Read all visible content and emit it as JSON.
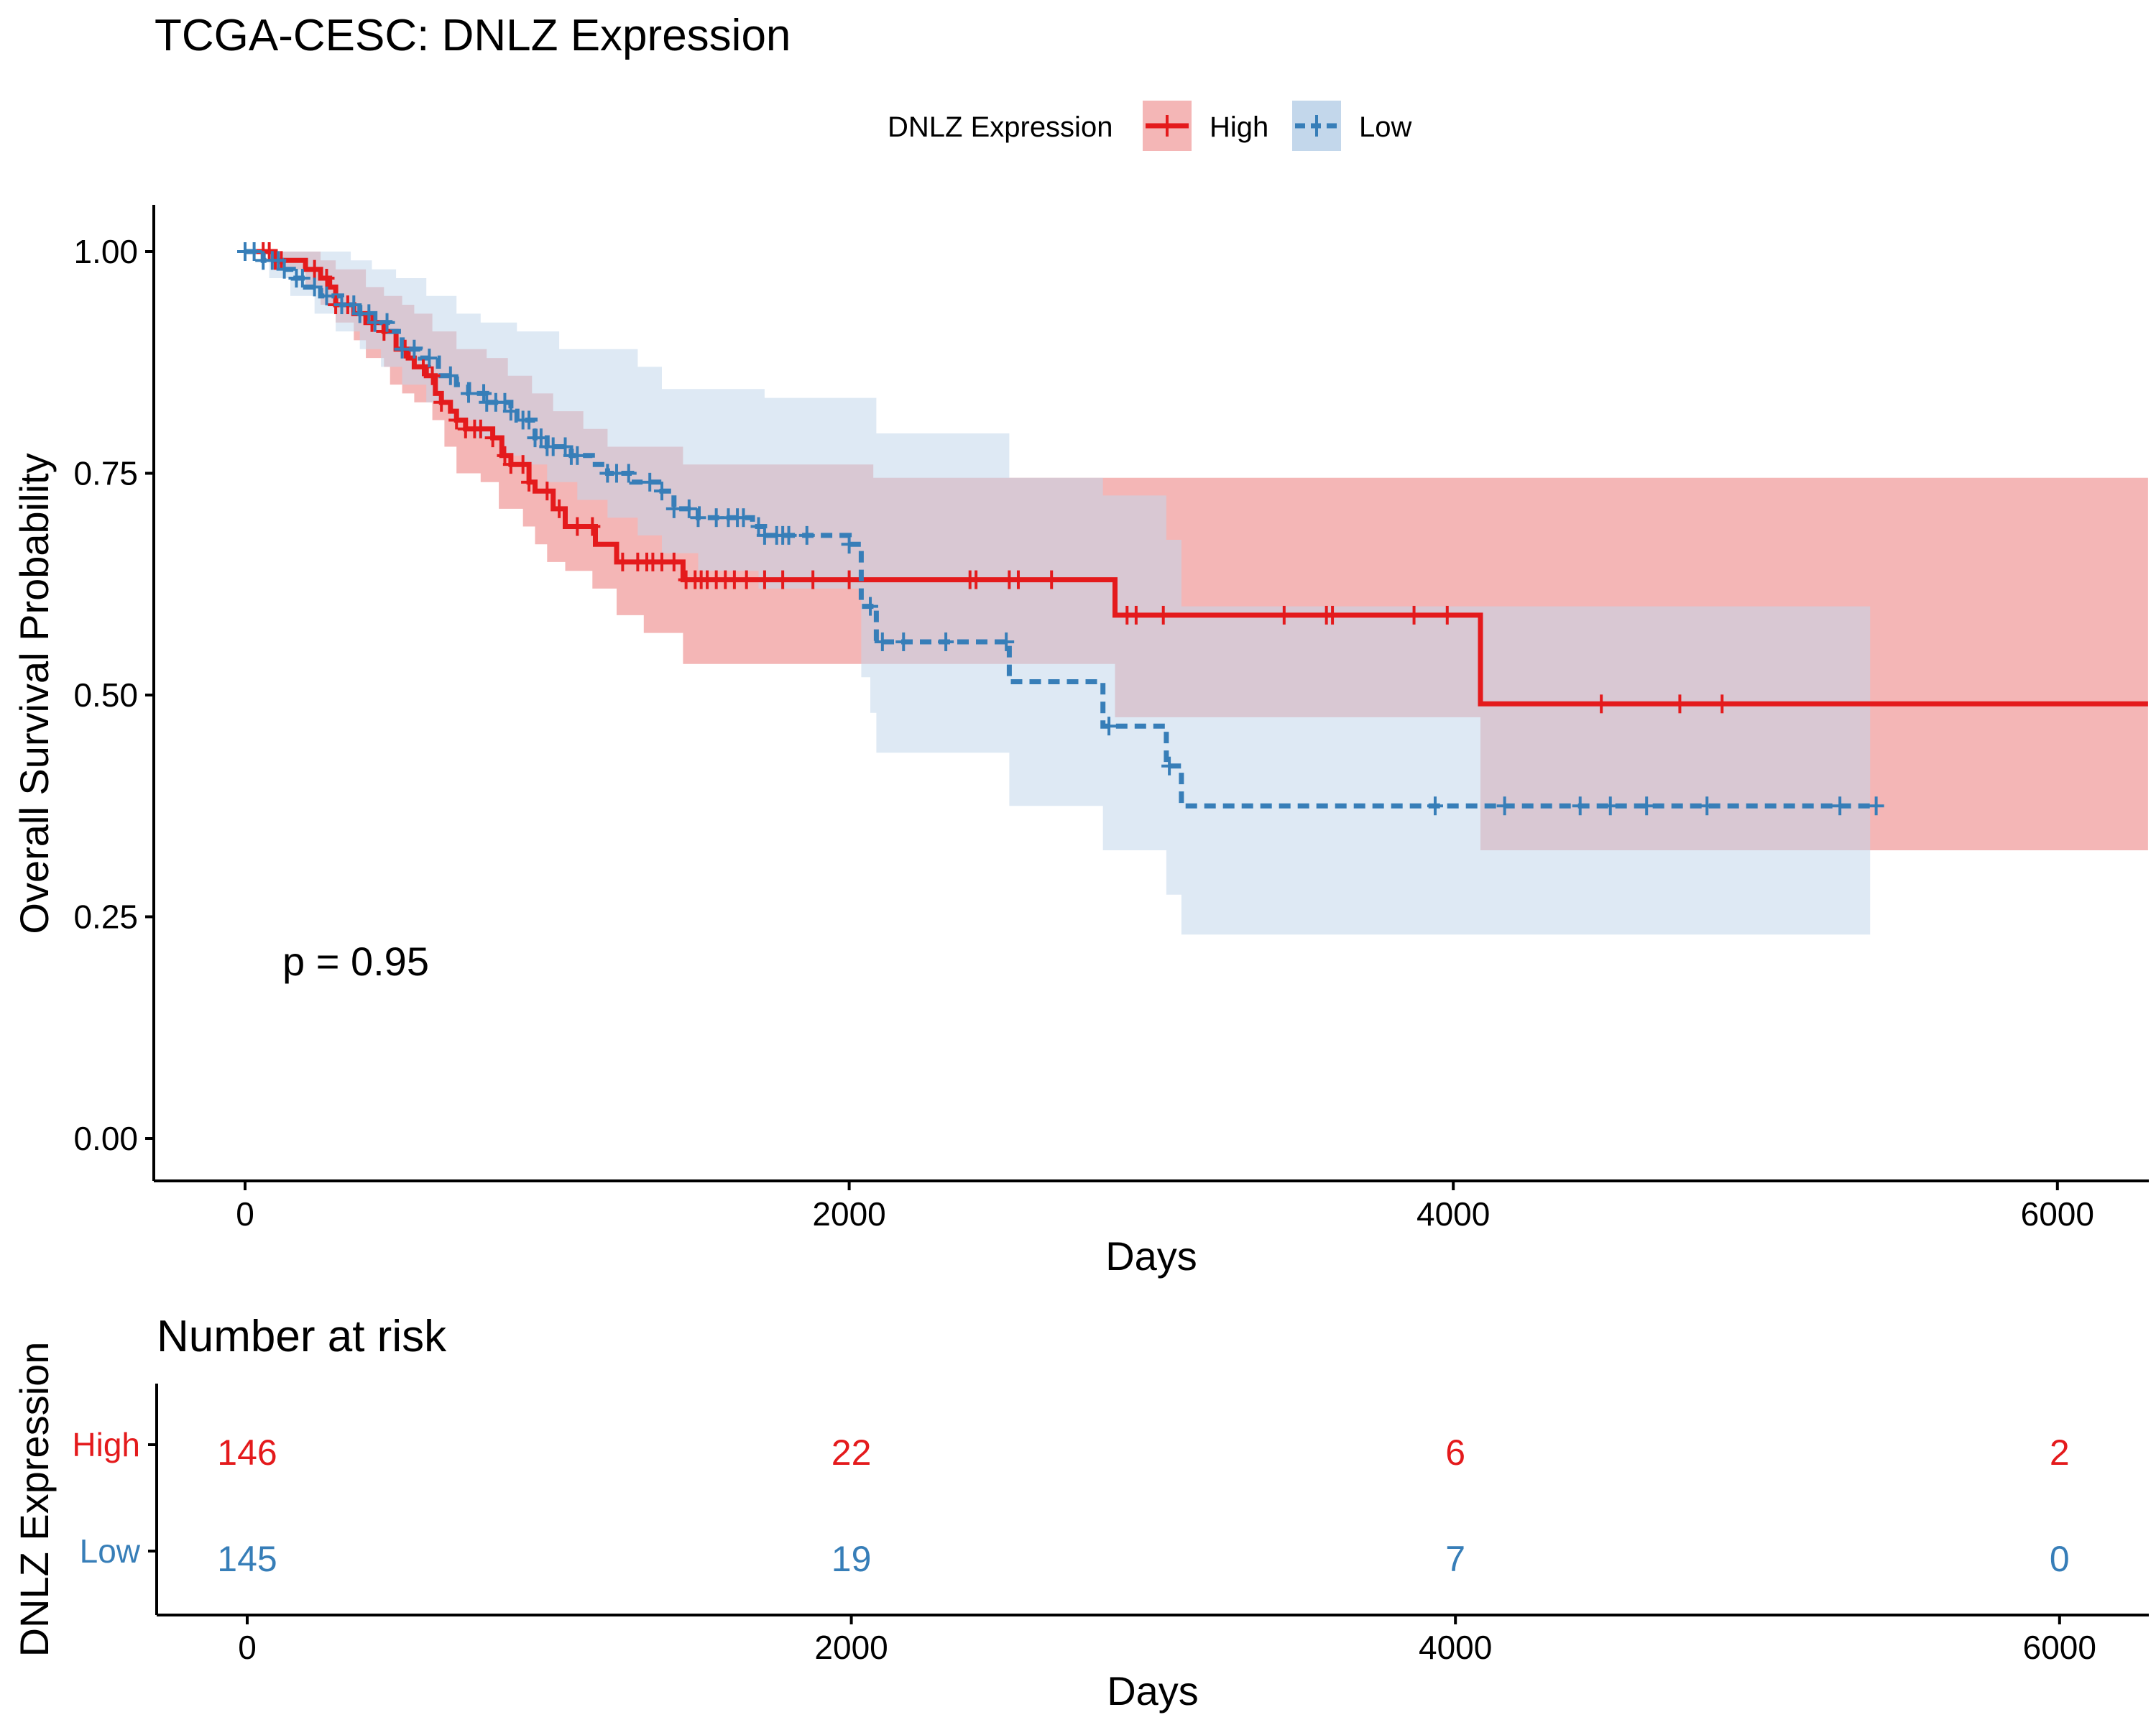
{
  "chart_data": {
    "type": "line",
    "subtype": "kaplan-meier",
    "title": "TCGA-CESC: DNLZ Expression",
    "xlabel": "Days",
    "ylabel": "Overall Survival Probability",
    "xlim": [
      -300,
      6300
    ],
    "ylim": [
      -0.05,
      1.05
    ],
    "x_ticks": [
      "0",
      "2000",
      "4000",
      "6000"
    ],
    "y_ticks": [
      "0.00",
      "0.25",
      "0.50",
      "0.75",
      "1.00"
    ],
    "legend": {
      "title": "DNLZ Expression",
      "position": "top",
      "entries": [
        "High",
        "Low"
      ]
    },
    "pvalue_text": "p = 0.95",
    "colors": {
      "High": "#e41a1c",
      "Low": "#377eb8",
      "High_ci": "#f4b6b6",
      "Low_ci": "#c3d7eb"
    },
    "series": [
      {
        "name": "High",
        "line": "solid",
        "steps": [
          [
            0,
            1.0
          ],
          [
            100,
            0.99
          ],
          [
            200,
            0.98
          ],
          [
            250,
            0.97
          ],
          [
            280,
            0.96
          ],
          [
            300,
            0.94
          ],
          [
            360,
            0.93
          ],
          [
            400,
            0.92
          ],
          [
            460,
            0.91
          ],
          [
            500,
            0.89
          ],
          [
            540,
            0.88
          ],
          [
            560,
            0.87
          ],
          [
            600,
            0.86
          ],
          [
            630,
            0.84
          ],
          [
            650,
            0.83
          ],
          [
            680,
            0.82
          ],
          [
            700,
            0.81
          ],
          [
            730,
            0.8
          ],
          [
            820,
            0.79
          ],
          [
            850,
            0.77
          ],
          [
            880,
            0.76
          ],
          [
            940,
            0.74
          ],
          [
            960,
            0.73
          ],
          [
            1020,
            0.71
          ],
          [
            1060,
            0.69
          ],
          [
            1160,
            0.67
          ],
          [
            1230,
            0.65
          ],
          [
            1450,
            0.63
          ],
          [
            2880,
            0.59
          ],
          [
            4090,
            0.49
          ],
          [
            6300,
            0.49
          ]
        ],
        "ci_upper": [
          [
            0,
            1.0
          ],
          [
            150,
            1.0
          ],
          [
            250,
            0.99
          ],
          [
            300,
            0.98
          ],
          [
            400,
            0.96
          ],
          [
            460,
            0.95
          ],
          [
            520,
            0.94
          ],
          [
            560,
            0.93
          ],
          [
            620,
            0.91
          ],
          [
            700,
            0.89
          ],
          [
            800,
            0.88
          ],
          [
            870,
            0.86
          ],
          [
            950,
            0.84
          ],
          [
            1020,
            0.82
          ],
          [
            1120,
            0.8
          ],
          [
            1200,
            0.78
          ],
          [
            1450,
            0.76
          ],
          [
            2080,
            0.745
          ],
          [
            2880,
            0.745
          ],
          [
            4090,
            0.745
          ],
          [
            6300,
            0.745
          ]
        ],
        "ci_lower": [
          [
            0,
            1.0
          ],
          [
            120,
            0.98
          ],
          [
            200,
            0.96
          ],
          [
            250,
            0.94
          ],
          [
            300,
            0.92
          ],
          [
            360,
            0.9
          ],
          [
            400,
            0.88
          ],
          [
            460,
            0.87
          ],
          [
            480,
            0.85
          ],
          [
            520,
            0.84
          ],
          [
            560,
            0.83
          ],
          [
            620,
            0.81
          ],
          [
            660,
            0.78
          ],
          [
            700,
            0.75
          ],
          [
            780,
            0.74
          ],
          [
            840,
            0.71
          ],
          [
            920,
            0.69
          ],
          [
            960,
            0.67
          ],
          [
            1000,
            0.65
          ],
          [
            1060,
            0.64
          ],
          [
            1150,
            0.62
          ],
          [
            1230,
            0.59
          ],
          [
            1320,
            0.57
          ],
          [
            1450,
            0.535
          ],
          [
            2880,
            0.475
          ],
          [
            4090,
            0.325
          ],
          [
            6300,
            0.325
          ]
        ],
        "censor_days": [
          60,
          80,
          100,
          120,
          230,
          270,
          300,
          340,
          420,
          460,
          530,
          590,
          620,
          650,
          700,
          730,
          760,
          780,
          820,
          860,
          880,
          920,
          940,
          1000,
          1040,
          1100,
          1150,
          1250,
          1300,
          1330,
          1350,
          1380,
          1420,
          1460,
          1490,
          1510,
          1530,
          1560,
          1590,
          1620,
          1660,
          1720,
          1780,
          1880,
          2000,
          2400,
          2420,
          2530,
          2560,
          2670,
          2920,
          2950,
          3040,
          3440,
          3580,
          3600,
          3870,
          3980,
          4490,
          4750,
          4890
        ]
      },
      {
        "name": "Low",
        "line": "dashed",
        "steps": [
          [
            0,
            1.0
          ],
          [
            60,
            0.99
          ],
          [
            120,
            0.98
          ],
          [
            160,
            0.97
          ],
          [
            200,
            0.96
          ],
          [
            250,
            0.95
          ],
          [
            320,
            0.94
          ],
          [
            380,
            0.93
          ],
          [
            430,
            0.92
          ],
          [
            480,
            0.91
          ],
          [
            520,
            0.89
          ],
          [
            580,
            0.88
          ],
          [
            640,
            0.86
          ],
          [
            700,
            0.85
          ],
          [
            740,
            0.84
          ],
          [
            800,
            0.83
          ],
          [
            880,
            0.82
          ],
          [
            900,
            0.81
          ],
          [
            960,
            0.79
          ],
          [
            1000,
            0.78
          ],
          [
            1080,
            0.77
          ],
          [
            1150,
            0.76
          ],
          [
            1200,
            0.75
          ],
          [
            1280,
            0.74
          ],
          [
            1380,
            0.73
          ],
          [
            1420,
            0.71
          ],
          [
            1500,
            0.7
          ],
          [
            1680,
            0.69
          ],
          [
            1720,
            0.68
          ],
          [
            2000,
            0.67
          ],
          [
            2040,
            0.6
          ],
          [
            2090,
            0.56
          ],
          [
            2530,
            0.515
          ],
          [
            2840,
            0.465
          ],
          [
            3050,
            0.42
          ],
          [
            3100,
            0.375
          ],
          [
            5380,
            0.375
          ]
        ],
        "ci_upper": [
          [
            0,
            1.0
          ],
          [
            150,
            1.0
          ],
          [
            250,
            1.0
          ],
          [
            350,
            0.99
          ],
          [
            420,
            0.98
          ],
          [
            500,
            0.97
          ],
          [
            600,
            0.95
          ],
          [
            700,
            0.93
          ],
          [
            780,
            0.92
          ],
          [
            900,
            0.91
          ],
          [
            1040,
            0.89
          ],
          [
            1300,
            0.87
          ],
          [
            1380,
            0.845
          ],
          [
            1720,
            0.835
          ],
          [
            2090,
            0.795
          ],
          [
            2530,
            0.745
          ],
          [
            2840,
            0.725
          ],
          [
            3050,
            0.675
          ],
          [
            3100,
            0.6
          ],
          [
            5380,
            0.6
          ]
        ],
        "ci_lower": [
          [
            0,
            1.0
          ],
          [
            80,
            0.97
          ],
          [
            150,
            0.95
          ],
          [
            230,
            0.93
          ],
          [
            300,
            0.91
          ],
          [
            380,
            0.89
          ],
          [
            450,
            0.87
          ],
          [
            520,
            0.85
          ],
          [
            600,
            0.83
          ],
          [
            680,
            0.81
          ],
          [
            760,
            0.79
          ],
          [
            840,
            0.77
          ],
          [
            920,
            0.76
          ],
          [
            1000,
            0.74
          ],
          [
            1100,
            0.72
          ],
          [
            1200,
            0.7
          ],
          [
            1300,
            0.68
          ],
          [
            1380,
            0.66
          ],
          [
            1500,
            0.64
          ],
          [
            1700,
            0.62
          ],
          [
            2040,
            0.52
          ],
          [
            2070,
            0.48
          ],
          [
            2090,
            0.435
          ],
          [
            2530,
            0.375
          ],
          [
            2840,
            0.325
          ],
          [
            3050,
            0.275
          ],
          [
            3100,
            0.23
          ],
          [
            5380,
            0.23
          ]
        ],
        "censor_days": [
          0,
          30,
          60,
          90,
          110,
          130,
          170,
          190,
          230,
          270,
          320,
          360,
          380,
          410,
          430,
          470,
          520,
          560,
          610,
          680,
          740,
          790,
          800,
          830,
          860,
          880,
          920,
          940,
          960,
          980,
          1000,
          1020,
          1060,
          1080,
          1100,
          1200,
          1230,
          1270,
          1340,
          1380,
          1420,
          1470,
          1500,
          1560,
          1600,
          1630,
          1650,
          1700,
          1720,
          1760,
          1780,
          1800,
          1860,
          2000,
          2070,
          2110,
          2180,
          2320,
          2520,
          2860,
          3060,
          3940,
          4170,
          4420,
          4520,
          4640,
          4840,
          5280,
          5400
        ]
      }
    ]
  },
  "risk_table": {
    "title": "Number at risk",
    "ylabel": "DNLZ Expression",
    "xlabel": "Days",
    "x_ticks": [
      "0",
      "2000",
      "4000",
      "6000"
    ],
    "time_points": [
      0,
      2000,
      4000,
      6000
    ],
    "rows": [
      {
        "label": "High",
        "counts": [
          "146",
          "22",
          "6",
          "2"
        ]
      },
      {
        "label": "Low",
        "counts": [
          "145",
          "19",
          "7",
          "0"
        ]
      }
    ]
  }
}
